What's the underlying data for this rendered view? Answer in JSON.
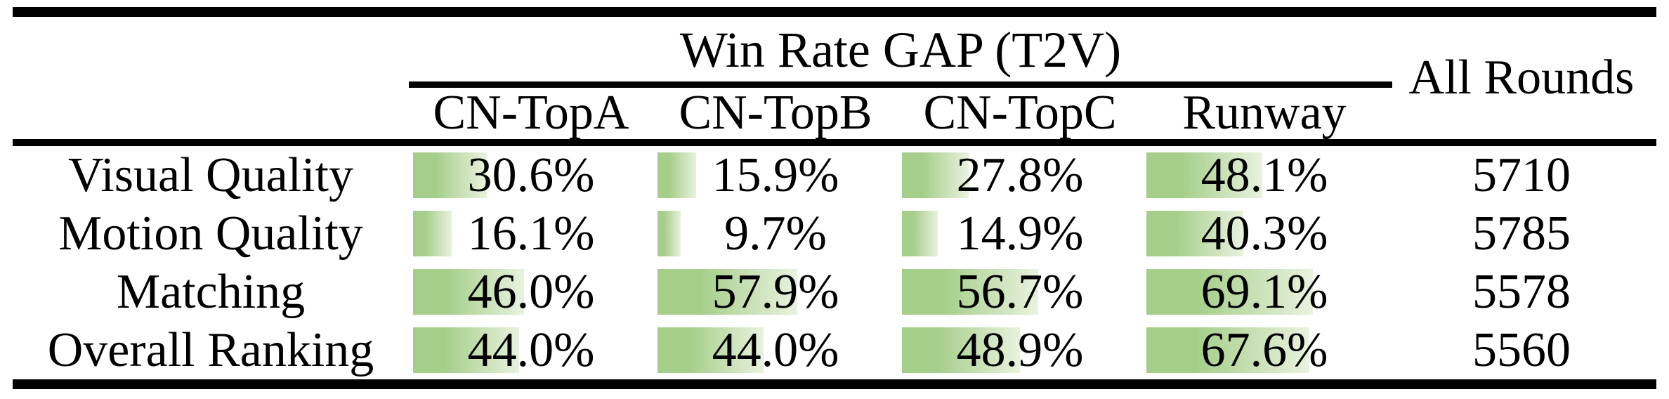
{
  "table": {
    "title": "Win Rate GAP (T2V)",
    "all_rounds_label": "All Rounds",
    "model_columns": [
      "CN-TopA",
      "CN-TopB",
      "CN-TopC",
      "Runway"
    ],
    "rows": [
      {
        "label": "Visual Quality",
        "cells": [
          {
            "pct": 30.6,
            "text": "30.6%"
          },
          {
            "pct": 15.9,
            "text": "15.9%"
          },
          {
            "pct": 27.8,
            "text": "27.8%"
          },
          {
            "pct": 48.1,
            "text": "48.1%"
          }
        ],
        "rounds": "5710"
      },
      {
        "label": "Motion Quality",
        "cells": [
          {
            "pct": 16.1,
            "text": "16.1%"
          },
          {
            "pct": 9.7,
            "text": "9.7%"
          },
          {
            "pct": 14.9,
            "text": "14.9%"
          },
          {
            "pct": 40.3,
            "text": "40.3%"
          }
        ],
        "rounds": "5785"
      },
      {
        "label": "Matching",
        "cells": [
          {
            "pct": 46.0,
            "text": "46.0%"
          },
          {
            "pct": 57.9,
            "text": "57.9%"
          },
          {
            "pct": 56.7,
            "text": "56.7%"
          },
          {
            "pct": 69.1,
            "text": "69.1%"
          }
        ],
        "rounds": "5578"
      },
      {
        "label": "Overall Ranking",
        "cells": [
          {
            "pct": 44.0,
            "text": "44.0%"
          },
          {
            "pct": 44.0,
            "text": "44.0%"
          },
          {
            "pct": 48.9,
            "text": "48.9%"
          },
          {
            "pct": 67.6,
            "text": "67.6%"
          }
        ],
        "rounds": "5560"
      }
    ],
    "colors": {
      "bar_gradient_start": "#a5ce8a",
      "bar_gradient_end": "#e9f2df"
    }
  }
}
